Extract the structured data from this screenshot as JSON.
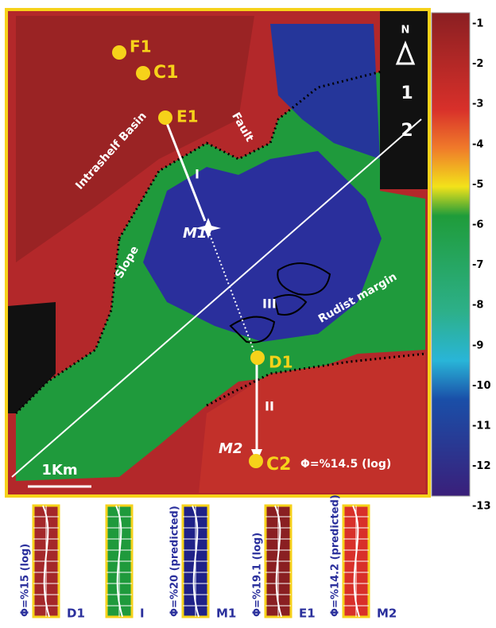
{
  "map": {
    "north": "N",
    "zones": [
      "1",
      "2"
    ],
    "wells": [
      "F1",
      "C1",
      "E1",
      "D1",
      "C2"
    ],
    "points": [
      "M1",
      "M2"
    ],
    "paths": [
      "I",
      "II",
      "III"
    ],
    "features": [
      "Intrashelf Basin",
      "Fault",
      "Slope",
      "Rudist margin"
    ],
    "porosity_note": "Φ=%14.5 (log)",
    "scale_bar": "1Km"
  },
  "color_scale": [
    -1,
    -2,
    -3,
    -4,
    -5,
    -6,
    -7,
    -8,
    -9,
    -10,
    -11,
    -12,
    -13
  ],
  "logs": [
    {
      "porosity": "Φ=%15 (log)",
      "well": "D1"
    },
    {
      "well": "I"
    },
    {
      "porosity": "Φ=%20 (predicted)",
      "well": "M1"
    },
    {
      "porosity": "Φ=%19.1 (log)",
      "well": "E1"
    },
    {
      "porosity": "Φ=%14.2 (predicted)",
      "well": "M2"
    }
  ]
}
